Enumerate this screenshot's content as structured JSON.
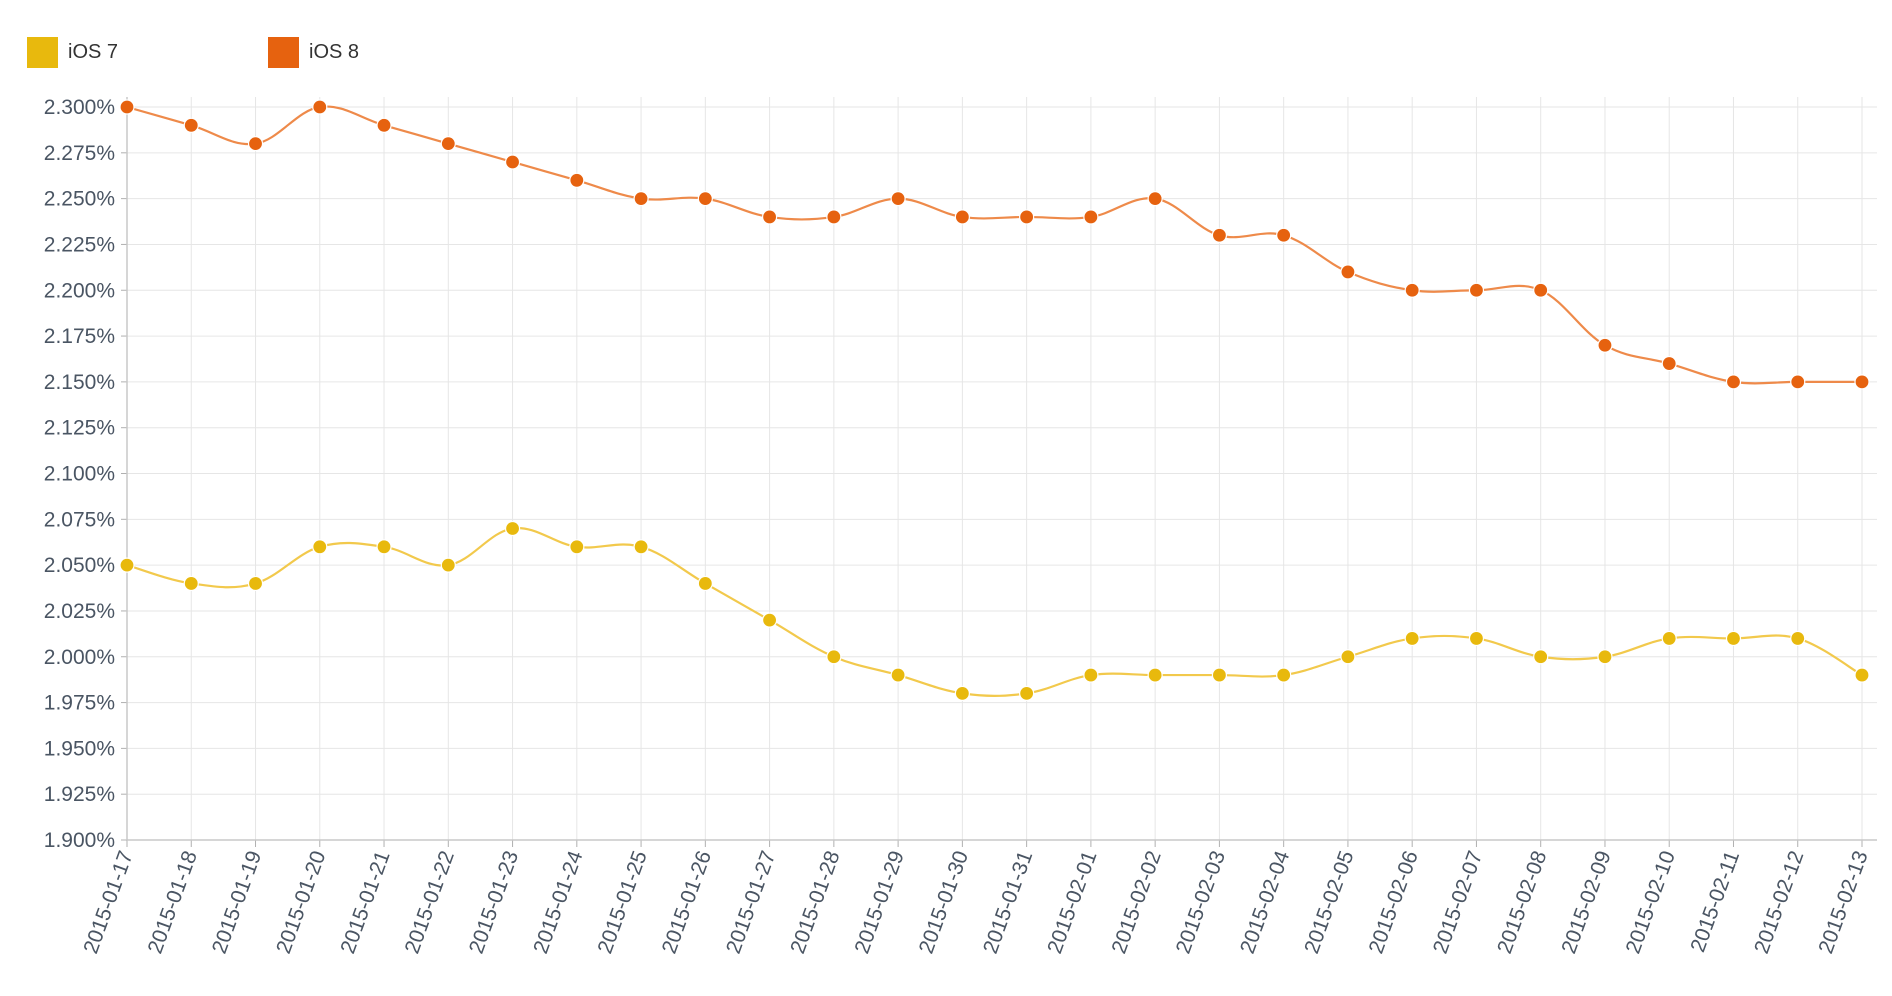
{
  "chart_data": {
    "type": "line",
    "x": [
      "2015-01-17",
      "2015-01-18",
      "2015-01-19",
      "2015-01-20",
      "2015-01-21",
      "2015-01-22",
      "2015-01-23",
      "2015-01-24",
      "2015-01-25",
      "2015-01-26",
      "2015-01-27",
      "2015-01-28",
      "2015-01-29",
      "2015-01-30",
      "2015-01-31",
      "2015-02-01",
      "2015-02-02",
      "2015-02-03",
      "2015-02-04",
      "2015-02-05",
      "2015-02-06",
      "2015-02-07",
      "2015-02-08",
      "2015-02-09",
      "2015-02-10",
      "2015-02-11",
      "2015-02-12",
      "2015-02-13"
    ],
    "series": [
      {
        "name": "iOS 7",
        "color": "#E8B90D",
        "values": [
          2.05,
          2.04,
          2.04,
          2.06,
          2.06,
          2.05,
          2.07,
          2.06,
          2.06,
          2.04,
          2.02,
          2.0,
          1.99,
          1.98,
          1.98,
          1.99,
          1.99,
          1.99,
          1.99,
          2.0,
          2.01,
          2.01,
          2.0,
          2.0,
          2.01,
          2.01,
          2.01,
          1.99
        ]
      },
      {
        "name": "iOS 8",
        "color": "#E6620F",
        "values": [
          2.3,
          2.29,
          2.28,
          2.3,
          2.29,
          2.28,
          2.27,
          2.26,
          2.25,
          2.25,
          2.24,
          2.24,
          2.25,
          2.24,
          2.24,
          2.24,
          2.25,
          2.23,
          2.23,
          2.21,
          2.2,
          2.2,
          2.2,
          2.17,
          2.16,
          2.15,
          2.15,
          2.15
        ]
      }
    ],
    "ylim": [
      1.9,
      2.3
    ],
    "y_ticks": [
      "2.300%",
      "2.275%",
      "2.250%",
      "2.225%",
      "2.200%",
      "2.175%",
      "2.150%",
      "2.125%",
      "2.100%",
      "2.075%",
      "2.050%",
      "2.025%",
      "2.000%",
      "1.975%",
      "1.950%",
      "1.925%",
      "1.900%"
    ],
    "title": "",
    "xlabel": "",
    "ylabel": "",
    "grid": true,
    "legend_position": "top-left"
  }
}
